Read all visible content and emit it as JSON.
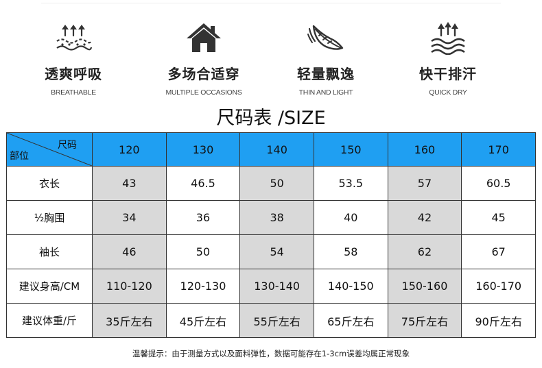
{
  "features": [
    {
      "icon": "breathable-icon",
      "cn": "透爽呼吸",
      "en": "BREATHABLE"
    },
    {
      "icon": "house-icon",
      "cn": "多场合适穿",
      "en": "MULTIPLE OCCASIONS"
    },
    {
      "icon": "feather-icon",
      "cn": "轻量飘逸",
      "en": "THIN AND LIGHT"
    },
    {
      "icon": "quick-dry-icon",
      "cn": "快干排汗",
      "en": "QUICK DRY"
    }
  ],
  "size_title": "尺码表 /SIZE",
  "table": {
    "corner_top": "尺码",
    "corner_bottom": "部位",
    "sizes": [
      "120",
      "130",
      "140",
      "150",
      "160",
      "170"
    ],
    "rows": [
      {
        "label": "衣长",
        "values": [
          "43",
          "46.5",
          "50",
          "53.5",
          "57",
          "60.5"
        ]
      },
      {
        "label": "½胸围",
        "values": [
          "34",
          "36",
          "38",
          "40",
          "42",
          "45"
        ]
      },
      {
        "label": "袖长",
        "values": [
          "46",
          "50",
          "54",
          "58",
          "62",
          "67"
        ]
      },
      {
        "label": "建议身高/CM",
        "values": [
          "110-120",
          "120-130",
          "130-140",
          "140-150",
          "150-160",
          "160-170"
        ]
      },
      {
        "label": "建议体重/斤",
        "values": [
          "35斤左右",
          "45斤左右",
          "55斤左右",
          "65斤左右",
          "75斤左右",
          "90斤左右"
        ]
      }
    ]
  },
  "note": "温馨提示：由于测量方式以及面料弹性，数据可能存在1-3cm误差均属正常现象",
  "colors": {
    "header": "#1f9ff2",
    "shade": "#d9d9d9",
    "icon": "#333333"
  }
}
